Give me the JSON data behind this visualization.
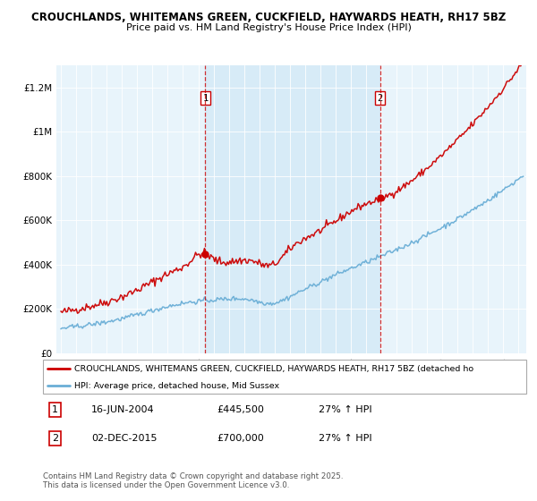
{
  "title_line1": "CROUCHLANDS, WHITEMANS GREEN, CUCKFIELD, HAYWARDS HEATH, RH17 5BZ",
  "title_line2": "Price paid vs. HM Land Registry's House Price Index (HPI)",
  "ylabel_ticks": [
    "£0",
    "£200K",
    "£400K",
    "£600K",
    "£800K",
    "£1M",
    "£1.2M"
  ],
  "ytick_values": [
    0,
    200000,
    400000,
    600000,
    800000,
    1000000,
    1200000
  ],
  "ylim": [
    0,
    1300000
  ],
  "xlim_start": 1994.7,
  "xlim_end": 2025.5,
  "sale1": {
    "year": 2004.46,
    "price": 445500,
    "label": "1"
  },
  "sale2": {
    "year": 2015.92,
    "price": 700000,
    "label": "2"
  },
  "red_color": "#cc0000",
  "blue_color": "#6aaed6",
  "bg_color_between": "#ddeeff",
  "bg_color_outside": "#e8f4fb",
  "legend_text1": "CROUCHLANDS, WHITEMANS GREEN, CUCKFIELD, HAYWARDS HEATH, RH17 5BZ (detached ho",
  "legend_text2": "HPI: Average price, detached house, Mid Sussex",
  "table_row1": [
    "1",
    "16-JUN-2004",
    "£445,500",
    "27% ↑ HPI"
  ],
  "table_row2": [
    "2",
    "02-DEC-2015",
    "£700,000",
    "27% ↑ HPI"
  ],
  "footer": "Contains HM Land Registry data © Crown copyright and database right 2025.\nThis data is licensed under the Open Government Licence v3.0."
}
